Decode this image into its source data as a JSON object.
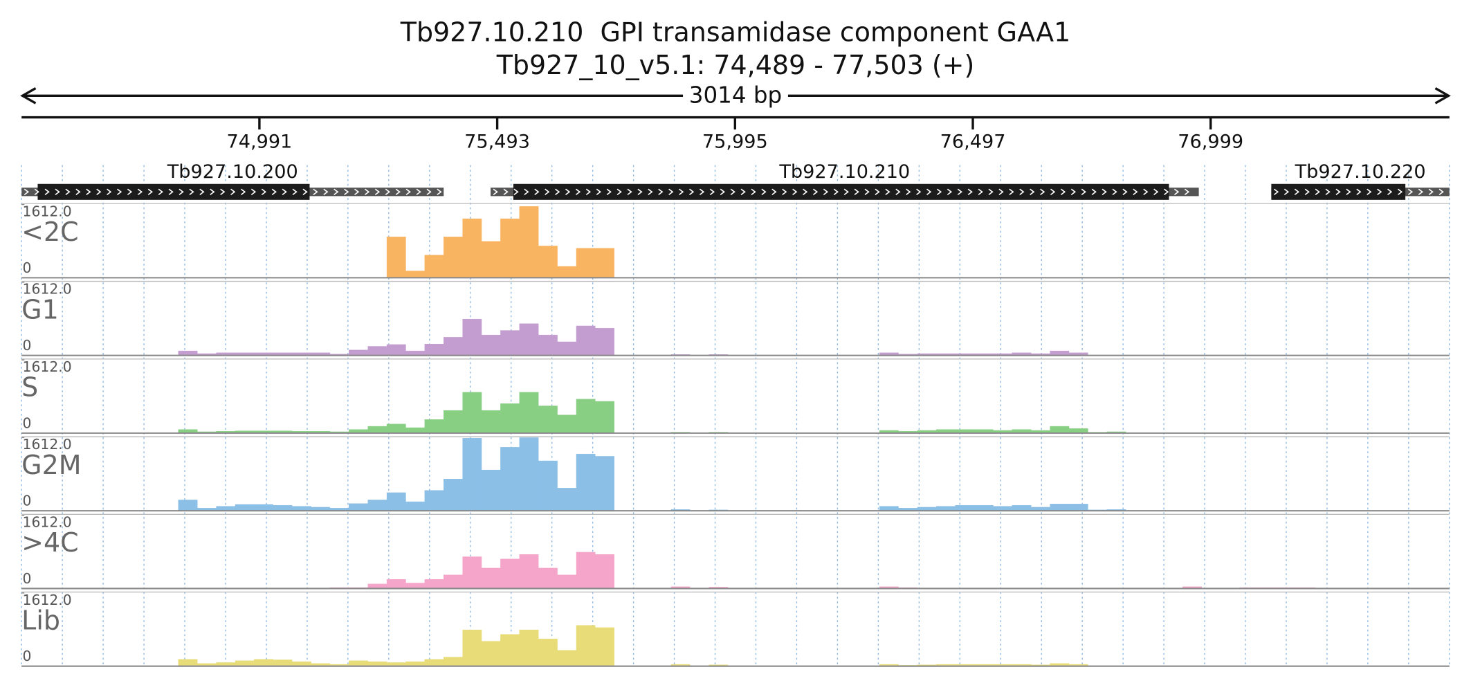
{
  "title": "Tb927.10.210  GPI transamidase component GAA1",
  "subtitle": "Tb927_10_v5.1: 74,489 - 77,503 (+)",
  "span_label": "3014 bp",
  "xlim": [
    74489,
    77503
  ],
  "xticks": [
    {
      "value": 74991,
      "label": "74,991"
    },
    {
      "value": 75493,
      "label": "75,493"
    },
    {
      "value": 75995,
      "label": "75,995"
    },
    {
      "value": 76497,
      "label": "76,497"
    },
    {
      "value": 76999,
      "label": "76,999"
    }
  ],
  "genes": [
    {
      "name": "Tb927.10.200",
      "start": 74489,
      "end": 75380,
      "cds_start": 74523,
      "cds_end": 75097
    },
    {
      "name": "Tb927.10.210",
      "start": 75479,
      "end": 76974,
      "cds_start": 75527,
      "cds_end": 76911
    },
    {
      "name": "Tb927.10.220",
      "start": 77127,
      "end": 77503,
      "cds_start": 77127,
      "cds_end": 77410
    }
  ],
  "bins": [
    74780,
    74820,
    74860,
    74900,
    74940,
    74980,
    75020,
    75060,
    75100,
    75140,
    75180,
    75220,
    75260,
    75300,
    75340,
    75380,
    75420,
    75460,
    75500,
    75540,
    75580,
    75620,
    75660,
    75700,
    75740,
    75780,
    75820,
    75860,
    75900,
    75940,
    75980,
    76020,
    76060,
    76100,
    76140,
    76180,
    76220,
    76260,
    76300,
    76340,
    76380,
    76420,
    76460,
    76500,
    76540,
    76580,
    76620,
    76660,
    76700,
    76740,
    76780,
    76820,
    76860,
    76900,
    76940,
    76980,
    77020,
    77060,
    77100,
    77140,
    77180,
    77220,
    77260,
    77300,
    77340,
    77380,
    77420,
    77460,
    77500
  ],
  "chart_data": [
    {
      "type": "histogram",
      "title": "<2C",
      "color": "#f9b462",
      "ylim": [
        0,
        1612
      ],
      "yticks": [
        0,
        {
          "value": 1612,
          "label": "1612.0"
        }
      ],
      "values": [
        0,
        0,
        0,
        0,
        0,
        0,
        0,
        0,
        0,
        0,
        0,
        0,
        900,
        150,
        500,
        900,
        1300,
        800,
        1300,
        1570,
        700,
        250,
        650,
        650,
        0,
        0,
        0,
        0,
        0,
        0,
        0,
        0,
        0,
        0,
        0,
        0,
        0,
        0,
        0,
        0,
        0,
        0,
        0,
        0,
        0,
        0,
        0,
        0,
        0,
        0,
        0,
        0,
        0,
        0,
        0,
        0,
        0,
        0,
        0,
        0,
        0,
        0,
        0,
        0,
        0,
        0,
        0,
        0
      ]
    },
    {
      "type": "histogram",
      "title": "G1",
      "color": "#c49dd0",
      "ylim": [
        0,
        1612
      ],
      "yticks": [
        0,
        {
          "value": 1612,
          "label": "1612.0"
        }
      ],
      "values": [
        0,
        100,
        40,
        60,
        60,
        60,
        60,
        60,
        60,
        30,
        120,
        200,
        240,
        100,
        250,
        400,
        800,
        450,
        550,
        700,
        450,
        300,
        650,
        600,
        0,
        0,
        0,
        20,
        0,
        20,
        0,
        0,
        0,
        0,
        0,
        0,
        0,
        0,
        60,
        30,
        40,
        40,
        40,
        40,
        40,
        60,
        40,
        100,
        60,
        0,
        0,
        0,
        0,
        0,
        0,
        0,
        0,
        0,
        0,
        0,
        0,
        0,
        0,
        0,
        0,
        0,
        0,
        0
      ]
    },
    {
      "type": "histogram",
      "title": "S",
      "color": "#88cf84",
      "ylim": [
        0,
        1612
      ],
      "yticks": [
        0,
        {
          "value": 1612,
          "label": "1612.0"
        }
      ],
      "values": [
        0,
        80,
        30,
        40,
        50,
        50,
        50,
        40,
        40,
        30,
        80,
        150,
        200,
        120,
        300,
        500,
        900,
        500,
        650,
        900,
        600,
        400,
        750,
        700,
        0,
        0,
        0,
        20,
        0,
        20,
        0,
        0,
        0,
        0,
        0,
        0,
        0,
        0,
        60,
        40,
        60,
        80,
        80,
        80,
        60,
        80,
        60,
        150,
        100,
        20,
        30,
        0,
        0,
        0,
        0,
        0,
        0,
        0,
        0,
        0,
        0,
        0,
        0,
        0,
        0,
        0,
        0,
        0
      ]
    },
    {
      "type": "histogram",
      "title": "G2M",
      "color": "#8bbfe6",
      "ylim": [
        0,
        1612
      ],
      "yticks": [
        0,
        {
          "value": 1612,
          "label": "1612.0"
        }
      ],
      "values": [
        0,
        240,
        60,
        100,
        140,
        140,
        120,
        100,
        80,
        60,
        160,
        240,
        400,
        200,
        450,
        700,
        1600,
        900,
        1400,
        1612,
        1100,
        500,
        1250,
        1200,
        0,
        0,
        0,
        30,
        0,
        20,
        0,
        0,
        0,
        0,
        0,
        0,
        0,
        0,
        100,
        60,
        80,
        100,
        120,
        120,
        100,
        120,
        80,
        150,
        150,
        20,
        30,
        0,
        0,
        0,
        0,
        0,
        0,
        0,
        0,
        0,
        0,
        0,
        0,
        0,
        0,
        0,
        0,
        0
      ]
    },
    {
      "type": "histogram",
      "title": ">4C",
      "color": "#f5a5c9",
      "ylim": [
        0,
        1612
      ],
      "yticks": [
        0,
        {
          "value": 1612,
          "label": "1612.0"
        }
      ],
      "values": [
        0,
        0,
        0,
        0,
        0,
        0,
        0,
        0,
        0,
        20,
        20,
        100,
        200,
        120,
        200,
        300,
        700,
        450,
        650,
        750,
        450,
        300,
        800,
        750,
        0,
        0,
        0,
        40,
        0,
        30,
        0,
        0,
        0,
        0,
        0,
        0,
        0,
        0,
        40,
        20,
        0,
        0,
        0,
        0,
        0,
        0,
        0,
        0,
        0,
        0,
        0,
        0,
        0,
        0,
        40,
        0,
        0,
        20,
        20,
        20,
        20,
        0,
        0,
        0,
        0,
        0,
        0,
        0
      ]
    },
    {
      "type": "histogram",
      "title": "Lib",
      "color": "#e7dc78",
      "ylim": [
        0,
        1612
      ],
      "yticks": [
        0,
        {
          "value": 1612,
          "label": "1612.0"
        }
      ],
      "values": [
        0,
        150,
        60,
        80,
        120,
        150,
        140,
        100,
        60,
        40,
        120,
        100,
        80,
        100,
        150,
        200,
        800,
        550,
        700,
        800,
        600,
        350,
        900,
        850,
        0,
        0,
        0,
        40,
        0,
        30,
        0,
        0,
        0,
        0,
        0,
        0,
        0,
        0,
        40,
        20,
        30,
        40,
        40,
        40,
        40,
        40,
        30,
        60,
        40,
        0,
        0,
        0,
        0,
        0,
        0,
        0,
        0,
        0,
        0,
        0,
        0,
        0,
        0,
        0,
        0,
        0,
        0,
        0
      ]
    }
  ]
}
